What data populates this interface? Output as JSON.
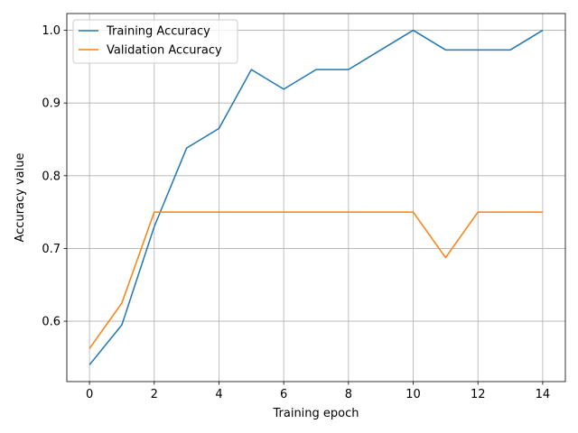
{
  "chart_data": {
    "type": "line",
    "xlabel": "Training epoch",
    "ylabel": "Accuracy value",
    "xlim": [
      -0.7,
      14.7
    ],
    "ylim": [
      0.517,
      1.023
    ],
    "xticks": [
      0,
      2,
      4,
      6,
      8,
      10,
      12,
      14
    ],
    "xtick_labels": [
      "0",
      "2",
      "4",
      "6",
      "8",
      "10",
      "12",
      "14"
    ],
    "yticks": [
      0.6,
      0.7,
      0.8,
      0.9,
      1.0
    ],
    "ytick_labels": [
      "0.6",
      "0.7",
      "0.8",
      "0.9",
      "1.0"
    ],
    "grid": true,
    "legend_position": "top-left",
    "x": [
      0,
      1,
      2,
      3,
      4,
      5,
      6,
      7,
      8,
      9,
      10,
      11,
      12,
      13,
      14
    ],
    "series": [
      {
        "name": "Training Accuracy",
        "color": "#1f77b4",
        "values": [
          0.54,
          0.595,
          0.73,
          0.838,
          0.865,
          0.946,
          0.919,
          0.946,
          0.946,
          0.973,
          1.0,
          0.973,
          0.973,
          0.973,
          1.0
        ]
      },
      {
        "name": "Validation Accuracy",
        "color": "#ff7f0e",
        "values": [
          0.5625,
          0.625,
          0.75,
          0.75,
          0.75,
          0.75,
          0.75,
          0.75,
          0.75,
          0.75,
          0.75,
          0.6875,
          0.75,
          0.75,
          0.75
        ]
      }
    ]
  }
}
